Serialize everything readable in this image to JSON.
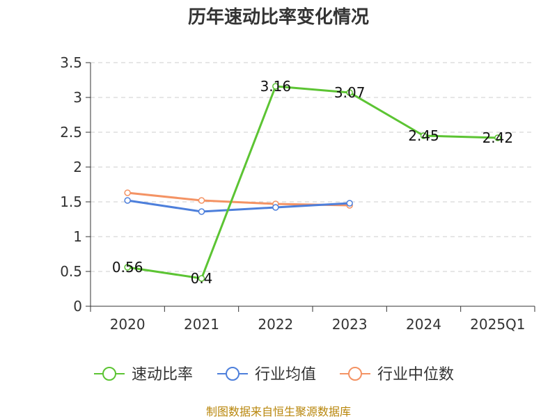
{
  "chart_data": {
    "type": "line",
    "title": "历年速动比率变化情况",
    "categories": [
      "2020",
      "2021",
      "2022",
      "2023",
      "2024",
      "2025Q1"
    ],
    "yticks": [
      "0",
      "0.5",
      "1",
      "1.5",
      "2",
      "2.5",
      "3",
      "3.5"
    ],
    "ylim": [
      0,
      3.5
    ],
    "grid": true,
    "legend_position": "bottom",
    "series": [
      {
        "name": "速动比率",
        "color": "#5cc433",
        "values": [
          0.56,
          0.4,
          3.16,
          3.07,
          2.45,
          2.42
        ],
        "labels": [
          "0.56",
          "0.4",
          "3.16",
          "3.07",
          "2.45",
          "2.42"
        ]
      },
      {
        "name": "行业均值",
        "color": "#4d7fdb",
        "values": [
          1.52,
          1.36,
          1.42,
          1.48,
          null,
          null
        ]
      },
      {
        "name": "行业中位数",
        "color": "#f49364",
        "values": [
          1.63,
          1.52,
          1.47,
          1.45,
          null,
          null
        ]
      }
    ]
  },
  "source": "制图数据来自恒生聚源数据库"
}
